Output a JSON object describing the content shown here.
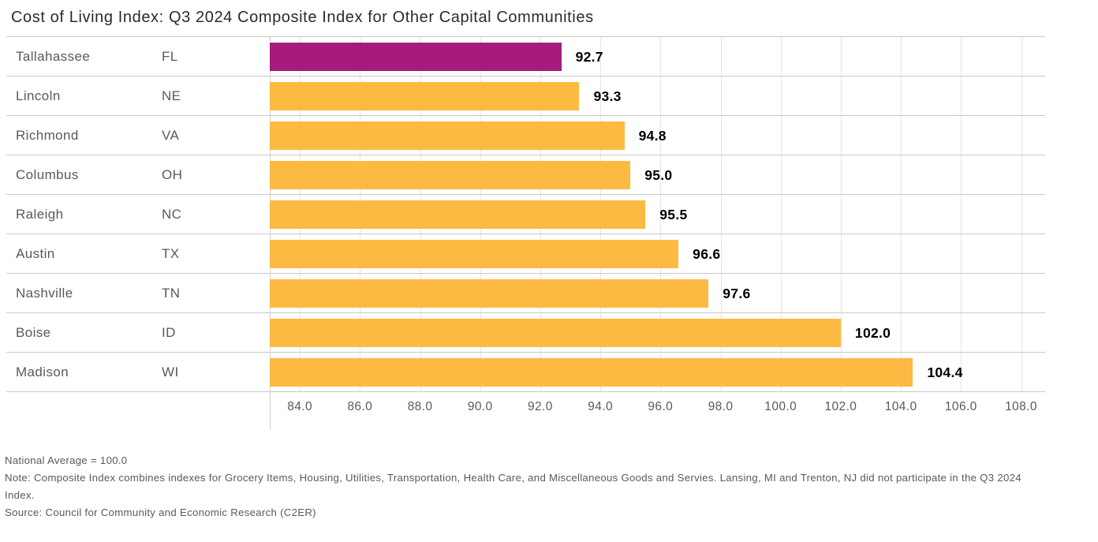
{
  "title": "Cost of Living Index: Q3 2024 Composite Index for Other Capital Communities",
  "chart_data": {
    "type": "bar",
    "orientation": "horizontal",
    "title": "Cost of Living Index: Q3 2024 Composite Index for Other Capital Communities",
    "categories": [
      "Tallahassee",
      "Lincoln",
      "Richmond",
      "Columbus",
      "Raleigh",
      "Austin",
      "Nashville",
      "Boise",
      "Madison"
    ],
    "states": [
      "FL",
      "NE",
      "VA",
      "OH",
      "NC",
      "TX",
      "TN",
      "ID",
      "WI"
    ],
    "values": [
      92.7,
      93.3,
      94.8,
      95.0,
      95.5,
      96.6,
      97.6,
      102.0,
      104.4
    ],
    "highlight_index": 0,
    "colors": {
      "highlight": "#A61B7B",
      "default": "#FCBA42"
    },
    "xlim": [
      83.0,
      108.8
    ],
    "xticks": [
      84.0,
      86.0,
      88.0,
      90.0,
      92.0,
      94.0,
      96.0,
      98.0,
      100.0,
      102.0,
      104.0,
      106.0,
      108.0
    ],
    "grid": true,
    "value_labels": true,
    "reference_line_note": "National Average = 100.0"
  },
  "footer": {
    "national_average": "National Average = 100.0",
    "note": "Note: Composite Index combines indexes for Grocery Items, Housing, Utilities, Transportation, Health Care, and Miscellaneous Goods and Servies. Lansing, MI and Trenton, NJ did not participate in the Q3 2024 Index.",
    "source": "Source: Council for Community and Economic Research (C2ER)"
  }
}
